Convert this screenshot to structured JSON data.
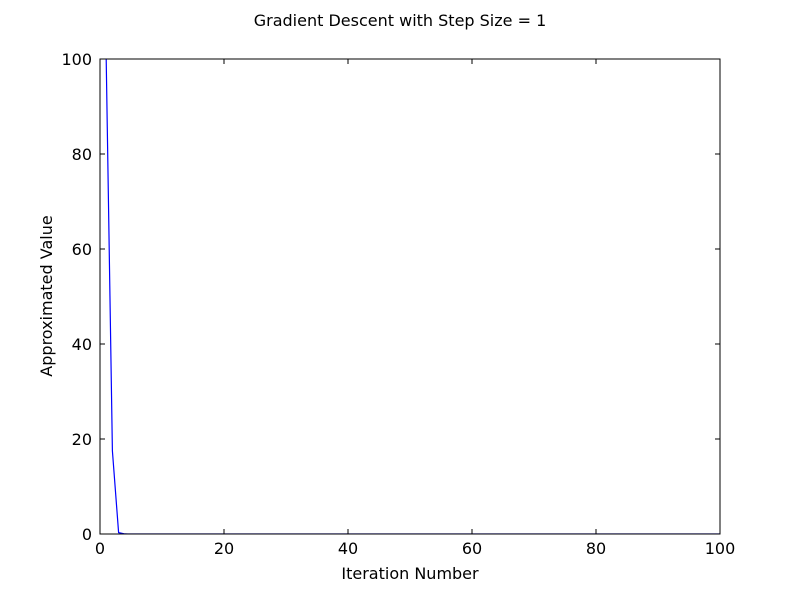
{
  "chart_data": {
    "type": "line",
    "title": "Gradient Descent with Step Size = 1",
    "xlabel": "Iteration Number",
    "ylabel": "Approximated Value",
    "xlim": [
      0,
      100
    ],
    "ylim": [
      0,
      100
    ],
    "xticks": [
      "0",
      "20",
      "40",
      "60",
      "80",
      "100"
    ],
    "yticks": [
      "0",
      "20",
      "40",
      "60",
      "80",
      "100"
    ],
    "grid": false,
    "series": [
      {
        "color": "#0000ff",
        "x": [
          1,
          2,
          3,
          4,
          5,
          6,
          7,
          8,
          9,
          10,
          20,
          30,
          40,
          50,
          60,
          70,
          80,
          90,
          100
        ],
        "y": [
          100,
          17.5,
          0.3,
          0.02,
          0,
          0,
          0,
          0,
          0,
          0,
          0,
          0,
          0,
          0,
          0,
          0,
          0,
          0,
          0
        ]
      }
    ]
  }
}
